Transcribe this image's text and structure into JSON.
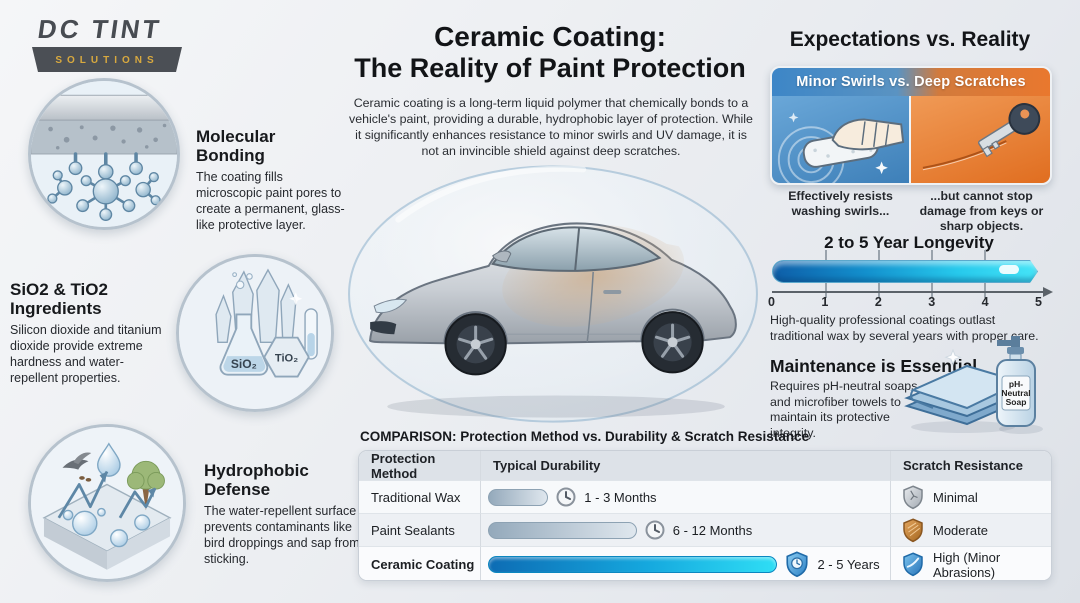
{
  "logo": {
    "name": "DC TINT",
    "sub": "SOLUTIONS"
  },
  "title": {
    "line1": "Ceramic Coating:",
    "line2": "The Reality of Paint Protection",
    "description": "Ceramic coating is a long-term liquid polymer that chemically bonds to a vehicle's paint, providing a durable, hydrophobic layer of protection. While it significantly enhances resistance to minor swirls and UV damage, it is not an invincible shield against deep scratches."
  },
  "sections": [
    {
      "title": "Molecular Bonding",
      "body": "The coating fills microscopic paint pores to create a permanent, glass-like protective layer."
    },
    {
      "title": "SiO2 & TiO2 Ingredients",
      "body": "Silicon dioxide and titanium dioxide provide extreme hardness and water-repellent properties.",
      "label_sio2": "SiO₂",
      "label_tio2": "TiO₂"
    },
    {
      "title": "Hydrophobic Defense",
      "body": "The water-repellent surface prevents contaminants like bird droppings and sap from sticking."
    }
  ],
  "expectations": {
    "title": "Expectations vs. Reality",
    "panel_header": "Minor Swirls vs. Deep Scratches",
    "left_caption": "Effectively resists washing swirls...",
    "right_caption": "...but cannot stop damage from keys or sharp objects."
  },
  "longevity": {
    "title": "2 to 5 Year Longevity",
    "ticks": [
      "0",
      "1",
      "2",
      "3",
      "4",
      "5"
    ],
    "axis_range": [
      0,
      5
    ],
    "bar_coverage": [
      0,
      4.8
    ],
    "caption": "High-quality professional coatings outlast traditional wax by several years with proper care."
  },
  "maintenance": {
    "title": "Maintenance is Essential",
    "body": "Requires pH-neutral soaps and microfiber towels to maintain its protective integrity.",
    "soap_label_lines": [
      "pH-",
      "Neutral",
      "Soap"
    ]
  },
  "comparison": {
    "title": "COMPARISON: Protection Method vs. Durability & Scratch Resistance",
    "columns": [
      "Protection Method",
      "Typical Durability",
      "Scratch Resistance"
    ],
    "rows": [
      {
        "method": "Traditional Wax",
        "durability": "1 - 3 Months",
        "bar_pct": 15,
        "resistance": "Minimal",
        "shield_color": "gray"
      },
      {
        "method": "Paint Sealants",
        "durability": "6 - 12 Months",
        "bar_pct": 37,
        "resistance": "Moderate",
        "shield_color": "bronze"
      },
      {
        "method": "Ceramic Coating",
        "durability": "2 - 5 Years",
        "bar_pct": 72,
        "resistance": "High (Minor Abrasions)",
        "shield_color": "blue"
      }
    ]
  },
  "colors": {
    "swirl_blue": "#3d86c7",
    "scratch_orange": "#e9782e",
    "gauge_blue": "#0e5ea8",
    "gauge_cyan": "#45e4f7",
    "shield_gray": "#aab1b8",
    "shield_bronze": "#b9762f",
    "shield_blue": "#3a9ad8",
    "logo_gold": "#d8a93f",
    "logo_gray": "#4b4f55"
  }
}
